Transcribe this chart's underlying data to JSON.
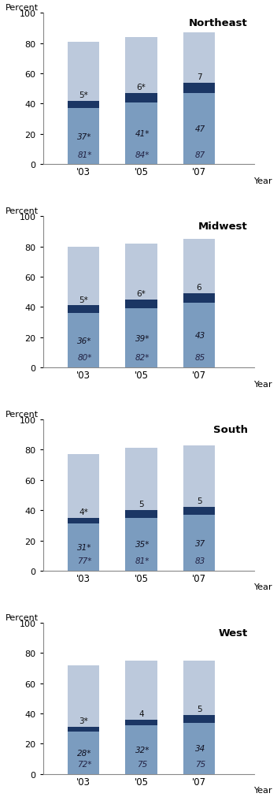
{
  "regions": [
    "Northeast",
    "Midwest",
    "South",
    "West"
  ],
  "years": [
    "'03",
    "'05",
    "'07"
  ],
  "data": {
    "Northeast": {
      "basic_plus": [
        81,
        84,
        87
      ],
      "proficient_plus": [
        37,
        41,
        47
      ],
      "advanced": [
        5,
        6,
        7
      ],
      "labels_bottom": [
        "81*",
        "84*",
        "87"
      ],
      "labels_mid": [
        "37*",
        "41*",
        "47"
      ],
      "labels_top": [
        "5*",
        "6*",
        "7"
      ]
    },
    "Midwest": {
      "basic_plus": [
        80,
        82,
        85
      ],
      "proficient_plus": [
        36,
        39,
        43
      ],
      "advanced": [
        5,
        6,
        6
      ],
      "labels_bottom": [
        "80*",
        "82*",
        "85"
      ],
      "labels_mid": [
        "36*",
        "39*",
        "43"
      ],
      "labels_top": [
        "5*",
        "6*",
        "6"
      ]
    },
    "South": {
      "basic_plus": [
        77,
        81,
        83
      ],
      "proficient_plus": [
        31,
        35,
        37
      ],
      "advanced": [
        4,
        5,
        5
      ],
      "labels_bottom": [
        "77*",
        "81*",
        "83"
      ],
      "labels_mid": [
        "31*",
        "35*",
        "37"
      ],
      "labels_top": [
        "4*",
        "5",
        "5"
      ]
    },
    "West": {
      "basic_plus": [
        72,
        75,
        75
      ],
      "proficient_plus": [
        28,
        32,
        34
      ],
      "advanced": [
        3,
        4,
        5
      ],
      "labels_bottom": [
        "72*",
        "75",
        "75"
      ],
      "labels_mid": [
        "28*",
        "32*",
        "34"
      ],
      "labels_top": [
        "3*",
        "4",
        "5"
      ]
    }
  },
  "color_light": "#bcc9dc",
  "color_mid": "#7b9cbf",
  "color_dark": "#1b3664",
  "bar_width": 0.55,
  "ylim": [
    0,
    100
  ],
  "yticks": [
    0,
    20,
    40,
    60,
    80,
    100
  ],
  "plot_bg": "#ffffff"
}
